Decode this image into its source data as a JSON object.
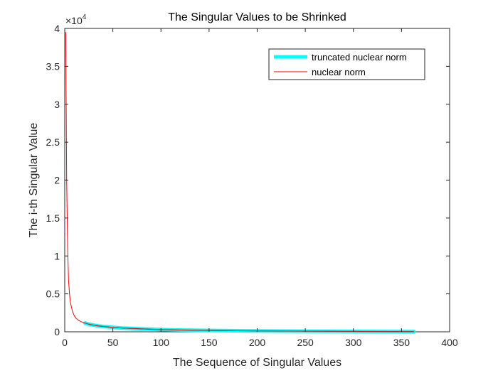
{
  "chart_data": {
    "type": "line",
    "title": "The Singular Values to be Shrinked",
    "xlabel": "The Sequence of Singular Values",
    "ylabel": "The i-th Singular Value",
    "xlim": [
      0,
      400
    ],
    "ylim": [
      0,
      40000
    ],
    "xticks": [
      0,
      50,
      100,
      150,
      200,
      250,
      300,
      350,
      400
    ],
    "yticks": [
      0,
      5000,
      10000,
      15000,
      20000,
      25000,
      30000,
      35000,
      40000
    ],
    "xtick_labels": [
      "0",
      "50",
      "100",
      "150",
      "200",
      "250",
      "300",
      "350",
      "400"
    ],
    "ytick_labels": [
      "0",
      "0.5",
      "1",
      "1.5",
      "2",
      "2.5",
      "3",
      "3.5",
      "4"
    ],
    "y_exponent_base": "×10",
    "y_exponent_power": "4",
    "grid": false,
    "legend_position": "top-right",
    "series": [
      {
        "name": "truncated nuclear norm",
        "color": "#00ffff",
        "x": [
          21,
          25,
          30,
          35,
          40,
          50,
          60,
          80,
          100,
          130,
          160,
          200,
          250,
          300,
          363
        ],
        "y": [
          1150,
          1000,
          880,
          780,
          700,
          580,
          500,
          380,
          290,
          210,
          160,
          110,
          80,
          60,
          30
        ]
      },
      {
        "name": "nuclear norm",
        "color": "#ff0000",
        "x": [
          1,
          2,
          3,
          4,
          5,
          6,
          8,
          10,
          12,
          15,
          18,
          21,
          25,
          30,
          35,
          40,
          50,
          60,
          80,
          100,
          130,
          160,
          200,
          250,
          300,
          363
        ],
        "y": [
          39500,
          20000,
          11000,
          6700,
          4900,
          3800,
          2700,
          2100,
          1750,
          1450,
          1280,
          1150,
          1000,
          880,
          780,
          700,
          580,
          500,
          380,
          290,
          210,
          160,
          110,
          80,
          60,
          30
        ]
      }
    ]
  }
}
